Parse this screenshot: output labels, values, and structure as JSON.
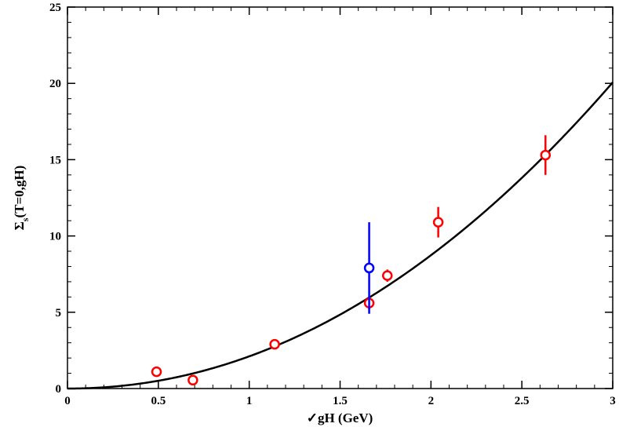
{
  "chart_data": {
    "type": "scatter",
    "title": "",
    "xlabel": "✓gH  (GeV)",
    "ylabel_main": "Σ",
    "ylabel_sub": "s",
    "ylabel_rest": "(T=0,gH)",
    "xlim": [
      0,
      3
    ],
    "ylim": [
      0,
      25
    ],
    "x_ticks": [
      0,
      0.5,
      1,
      1.5,
      2,
      2.5,
      3
    ],
    "x_tick_labels": [
      "0",
      "0.5",
      "1",
      "1.5",
      "2",
      "2.5",
      "3"
    ],
    "y_ticks": [
      0,
      5,
      10,
      15,
      20,
      25
    ],
    "y_tick_labels": [
      "0",
      "5",
      "10",
      "15",
      "20",
      "25"
    ],
    "grid": false,
    "series": [
      {
        "color": "#ff0000",
        "marker": "open-circle",
        "points": [
          {
            "x": 0.49,
            "y": 1.1,
            "err": 0.1
          },
          {
            "x": 0.69,
            "y": 0.55,
            "err": 0.15
          },
          {
            "x": 1.14,
            "y": 2.9,
            "err": 0.2
          },
          {
            "x": 1.66,
            "y": 5.6,
            "err": 0.4
          },
          {
            "x": 1.76,
            "y": 7.4,
            "err": 0.4
          },
          {
            "x": 2.04,
            "y": 10.9,
            "err": 1.0
          },
          {
            "x": 2.63,
            "y": 15.3,
            "err": 1.3
          }
        ]
      },
      {
        "color": "#0000ff",
        "marker": "open-circle",
        "points": [
          {
            "x": 1.66,
            "y": 7.9,
            "err": 3.0
          }
        ]
      }
    ],
    "curve": {
      "color": "#000000",
      "description_formula": "y = a * x^2.05",
      "a": 2.11,
      "power": 2.05
    }
  }
}
